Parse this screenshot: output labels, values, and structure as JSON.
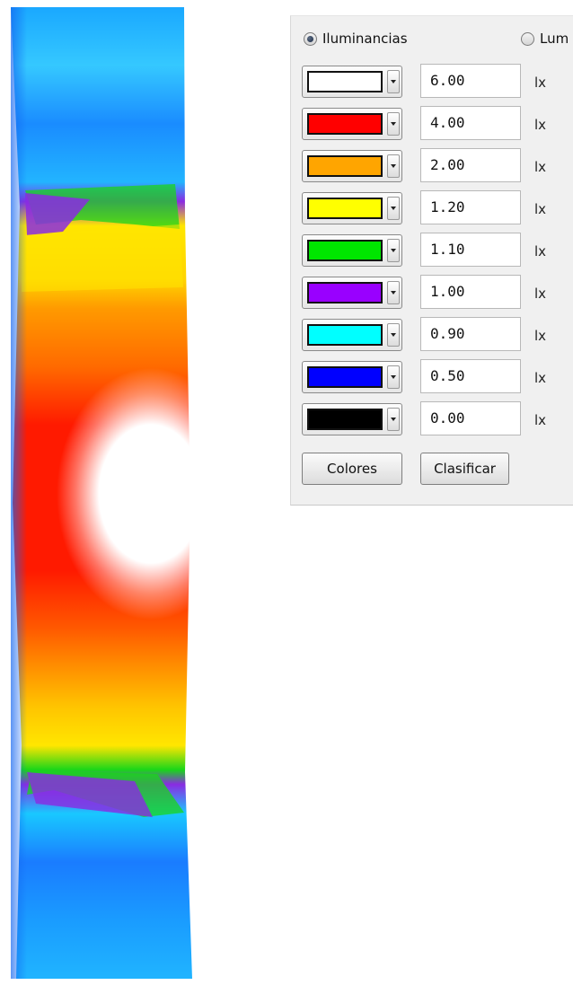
{
  "panel": {
    "radio_options": [
      {
        "label": "Iluminancias",
        "selected": true
      },
      {
        "label": "Lum",
        "selected": false
      }
    ],
    "rows": [
      {
        "color": "#ffffff",
        "value": "6.00",
        "unit": "lx"
      },
      {
        "color": "#ff0000",
        "value": "4.00",
        "unit": "lx"
      },
      {
        "color": "#ffa500",
        "value": "2.00",
        "unit": "lx"
      },
      {
        "color": "#ffff00",
        "value": "1.20",
        "unit": "lx"
      },
      {
        "color": "#00e600",
        "value": "1.10",
        "unit": "lx"
      },
      {
        "color": "#9900ff",
        "value": "1.00",
        "unit": "lx"
      },
      {
        "color": "#00ffff",
        "value": "0.90",
        "unit": "lx"
      },
      {
        "color": "#0000ff",
        "value": "0.50",
        "unit": "lx"
      },
      {
        "color": "#000000",
        "value": "0.00",
        "unit": "lx"
      }
    ],
    "buttons": {
      "colores": "Colores",
      "clasificar": "Clasificar"
    }
  },
  "heatmap": {
    "palette": {
      "white": "#ffffff",
      "red": "#ff1a00",
      "orange": "#ff8c00",
      "yellow": "#ffe600",
      "green": "#19d619",
      "purple": "#8a2be2",
      "cyan": "#19d4ff",
      "blue": "#1466f0"
    }
  }
}
